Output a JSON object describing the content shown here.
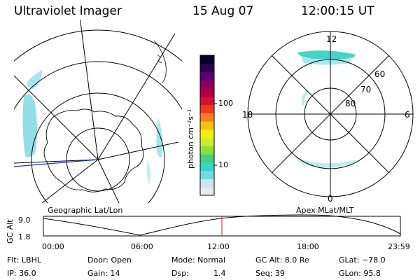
{
  "header": {
    "title": "Ultraviolet Imager",
    "date": "15 Aug 07",
    "time": "12:00:15 UT"
  },
  "colorbar": {
    "unit_label": "photon cm⁻²s⁻¹",
    "tick_100": "100",
    "tick_10": "10",
    "colors": [
      "#e8eaf0",
      "#c6e8f0",
      "#6fdde0",
      "#33d6c8",
      "#44d080",
      "#88e040",
      "#ccee22",
      "#f4ee10",
      "#f8c010",
      "#f88018",
      "#f03a20",
      "#d81030",
      "#b00040",
      "#8a0060",
      "#5a0070",
      "#2a0050",
      "#0a0028"
    ]
  },
  "left_panel": {
    "label": "Geographic Lat/Lon"
  },
  "right_panel": {
    "label": "Apex MLat/MLT",
    "mlt_12": "12",
    "mlt_18": "18",
    "mlt_6": "6",
    "mlt_0": "0",
    "lat_60": "60",
    "lat_70": "70",
    "lat_80": "80"
  },
  "altitude_plot": {
    "ylabel": "GC Alt",
    "y_max": "9.0",
    "y_min": "1.8",
    "x_ticks": [
      "00:00",
      "06:00",
      "12:00",
      "18:00",
      "23:59"
    ],
    "current_time_fraction": 0.5
  },
  "info": {
    "flt": "Flt: LBHL",
    "door": "Door: Open",
    "mode": "Mode: Normal",
    "gcalt": "GC Alt: 8.0 Re",
    "glat": "GLat: −78.0",
    "ip": "IP: 36.0",
    "gain": "Gain: 14",
    "dsp_label": "Dsp:",
    "dsp_value": "1.4",
    "seq": "Seq: 39",
    "glon": "GLon:  95.8"
  }
}
